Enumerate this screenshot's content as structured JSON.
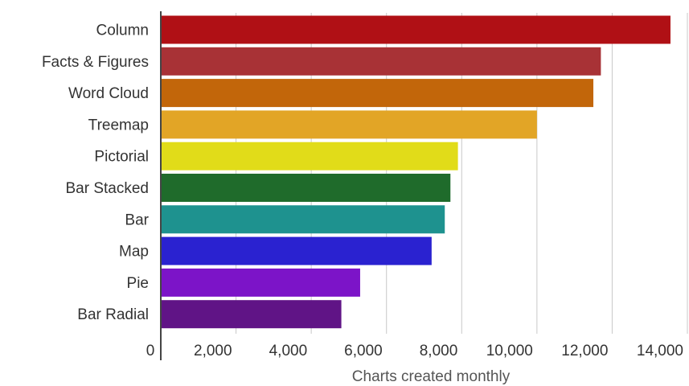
{
  "chart_data": {
    "type": "bar",
    "orientation": "horizontal",
    "categories": [
      "Column",
      "Facts & Figures",
      "Word Cloud",
      "Treemap",
      "Pictorial",
      "Bar Stacked",
      "Bar",
      "Map",
      "Pie",
      "Bar Radial"
    ],
    "values": [
      13550,
      11700,
      11500,
      10000,
      7900,
      7700,
      7550,
      7200,
      5300,
      4800
    ],
    "colors": [
      "#b01015",
      "#a83236",
      "#c2660a",
      "#e2a526",
      "#e1dc19",
      "#1f6b2b",
      "#1e928f",
      "#2a22d0",
      "#7c14c8",
      "#601486"
    ],
    "xlabel": "Charts created monthly",
    "xlim": [
      0,
      14000
    ],
    "xticks": [
      0,
      2000,
      4000,
      6000,
      8000,
      10000,
      12000,
      14000
    ],
    "xtick_labels": [
      "0",
      "2,000",
      "4,000",
      "6,000",
      "8,000",
      "10,000",
      "12,000",
      "14,000"
    ],
    "grid": true
  }
}
